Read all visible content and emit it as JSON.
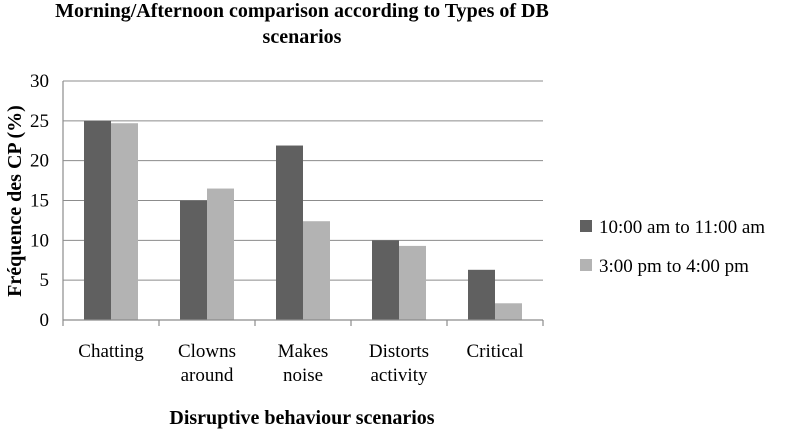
{
  "chart_data": {
    "type": "bar",
    "title_lines": [
      "Morning/Afternoon comparison according to Types of DB",
      "scenarios"
    ],
    "xlabel": "Disruptive behaviour scenarios",
    "ylabel": "Fréquence des CP (%)",
    "ylim": [
      0,
      30
    ],
    "yticks": [
      0,
      5,
      10,
      15,
      20,
      25,
      30
    ],
    "grid": true,
    "legend_position": "right",
    "categories": [
      [
        "Chatting"
      ],
      [
        "Clowns",
        "around"
      ],
      [
        "Makes",
        "noise"
      ],
      [
        "Distorts",
        "activity"
      ],
      [
        "Critical"
      ]
    ],
    "series": [
      {
        "name": "10:00 am to 11:00 am",
        "color": "#606060",
        "values": [
          25,
          15,
          21.9,
          10,
          6.3
        ]
      },
      {
        "name": "3:00 pm to 4:00 pm",
        "color": "#b3b3b3",
        "values": [
          24.7,
          16.5,
          12.4,
          9.3,
          2.1
        ]
      }
    ]
  }
}
